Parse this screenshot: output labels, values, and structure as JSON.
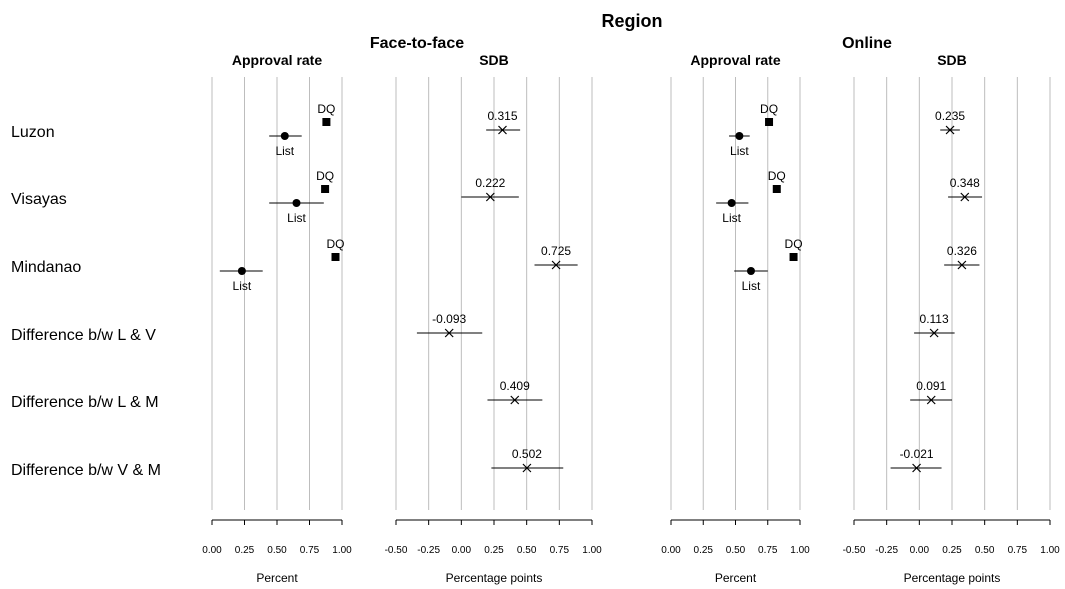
{
  "chart_data": {
    "type": "scatter",
    "title": "Region",
    "rows": [
      "Luzon",
      "Visayas",
      "Mindanao",
      "Difference b/w L & V",
      "Difference b/w L & M",
      "Difference b/w V & M"
    ],
    "groups": [
      {
        "name": "Face-to-face",
        "approval": {
          "title": "Approval rate",
          "xlabel": "Percent",
          "xlim": [
            0,
            1
          ],
          "ticks": [
            "0.00",
            "0.25",
            "0.50",
            "0.75",
            "1.00"
          ],
          "list_label": "List",
          "dq_label": "DQ",
          "list": [
            {
              "row": "Luzon",
              "value": 0.56,
              "lo": 0.44,
              "hi": 0.69
            },
            {
              "row": "Visayas",
              "value": 0.65,
              "lo": 0.44,
              "hi": 0.86
            },
            {
              "row": "Mindanao",
              "value": 0.23,
              "lo": 0.06,
              "hi": 0.39
            }
          ],
          "dq": [
            {
              "row": "Luzon",
              "value": 0.88
            },
            {
              "row": "Visayas",
              "value": 0.87
            },
            {
              "row": "Mindanao",
              "value": 0.95
            }
          ]
        },
        "sdb": {
          "title": "SDB",
          "xlabel": "Percentage points",
          "xlim": [
            -0.5,
            1
          ],
          "ticks": [
            "-0.50",
            "-0.25",
            "0.00",
            "0.25",
            "0.50",
            "0.75",
            "1.00"
          ],
          "points": [
            {
              "row": "Luzon",
              "value": 0.315,
              "label": "0.315",
              "lo": 0.19,
              "hi": 0.45
            },
            {
              "row": "Visayas",
              "value": 0.222,
              "label": "0.222",
              "lo": 0.0,
              "hi": 0.44
            },
            {
              "row": "Mindanao",
              "value": 0.725,
              "label": "0.725",
              "lo": 0.56,
              "hi": 0.89
            },
            {
              "row": "Difference b/w L & V",
              "value": -0.093,
              "label": "-0.093",
              "lo": -0.34,
              "hi": 0.16
            },
            {
              "row": "Difference b/w L & M",
              "value": 0.409,
              "label": "0.409",
              "lo": 0.2,
              "hi": 0.62
            },
            {
              "row": "Difference b/w V & M",
              "value": 0.502,
              "label": "0.502",
              "lo": 0.23,
              "hi": 0.78
            }
          ]
        }
      },
      {
        "name": "Online",
        "approval": {
          "title": "Approval rate",
          "xlabel": "Percent",
          "xlim": [
            0,
            1
          ],
          "ticks": [
            "0.00",
            "0.25",
            "0.50",
            "0.75",
            "1.00"
          ],
          "list_label": "List",
          "dq_label": "DQ",
          "list": [
            {
              "row": "Luzon",
              "value": 0.53,
              "lo": 0.45,
              "hi": 0.61
            },
            {
              "row": "Visayas",
              "value": 0.47,
              "lo": 0.35,
              "hi": 0.6
            },
            {
              "row": "Mindanao",
              "value": 0.62,
              "lo": 0.49,
              "hi": 0.75
            }
          ],
          "dq": [
            {
              "row": "Luzon",
              "value": 0.76
            },
            {
              "row": "Visayas",
              "value": 0.82
            },
            {
              "row": "Mindanao",
              "value": 0.95
            }
          ]
        },
        "sdb": {
          "title": "SDB",
          "xlabel": "Percentage points",
          "xlim": [
            -0.5,
            1
          ],
          "ticks": [
            "-0.50",
            "-0.25",
            "0.00",
            "0.25",
            "0.50",
            "0.75",
            "1.00"
          ],
          "points": [
            {
              "row": "Luzon",
              "value": 0.235,
              "label": "0.235",
              "lo": 0.16,
              "hi": 0.31
            },
            {
              "row": "Visayas",
              "value": 0.348,
              "label": "0.348",
              "lo": 0.22,
              "hi": 0.48
            },
            {
              "row": "Mindanao",
              "value": 0.326,
              "label": "0.326",
              "lo": 0.19,
              "hi": 0.46
            },
            {
              "row": "Difference b/w L & V",
              "value": 0.113,
              "label": "0.113",
              "lo": -0.04,
              "hi": 0.27
            },
            {
              "row": "Difference b/w L & M",
              "value": 0.091,
              "label": "0.091",
              "lo": -0.07,
              "hi": 0.25
            },
            {
              "row": "Difference b/w V & M",
              "value": -0.021,
              "label": "-0.021",
              "lo": -0.22,
              "hi": 0.17
            }
          ]
        }
      }
    ]
  }
}
